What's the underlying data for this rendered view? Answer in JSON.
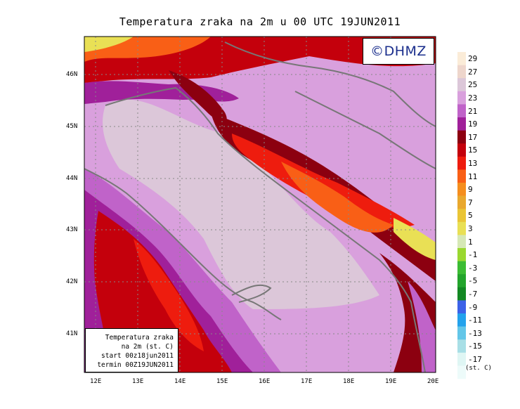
{
  "title": "Temperatura zraka na 2m u 00 UTC 19JUN2011",
  "logo": "©DHMZ",
  "info_box": [
    "Temperatura zraka",
    "na 2m (st. C)",
    "start 00z18jun2011",
    "termin 00Z19JUN2011"
  ],
  "lat_labels": [
    "46N",
    "45N",
    "44N",
    "43N",
    "42N",
    "41N"
  ],
  "lon_labels": [
    "12E",
    "13E",
    "14E",
    "15E",
    "16E",
    "17E",
    "18E",
    "19E",
    "20E"
  ],
  "colorbar": {
    "unit": "(st. C)",
    "labels": [
      "29",
      "27",
      "25",
      "23",
      "21",
      "19",
      "17",
      "15",
      "13",
      "11",
      "9",
      "7",
      "5",
      "3",
      "1",
      "-1",
      "-3",
      "-5",
      "-7",
      "-9",
      "-11",
      "-13",
      "-15",
      "-17"
    ],
    "colors": [
      "#fbecd8",
      "#eed6cc",
      "#dcc7d9",
      "#d9a0dd",
      "#c063c9",
      "#a0209a",
      "#8c0010",
      "#c4000c",
      "#ee1c0e",
      "#f95f16",
      "#f58e1e",
      "#e9a82e",
      "#eac536",
      "#e9e055",
      "#d6e8b6",
      "#9ad830",
      "#3cbc34",
      "#23a42c",
      "#138823",
      "#3c62e8",
      "#23a2ec",
      "#63c6e8",
      "#a8dfe6",
      "#dff6f4",
      "#edfbfa"
    ]
  }
}
